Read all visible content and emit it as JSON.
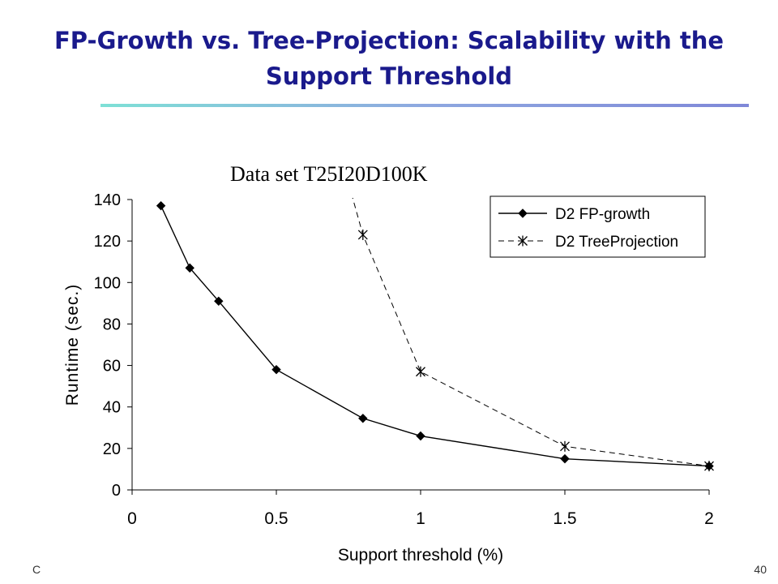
{
  "slide": {
    "title": "FP-Growth vs. Tree-Projection: Scalability with the Support Threshold",
    "footer_left": "C",
    "page_number": "40"
  },
  "colors": {
    "title": "#1a1a8c",
    "bar_start": "#7ee0d6",
    "bar_end": "#7f88d8"
  },
  "chart_data": {
    "type": "line",
    "title": "Data set T25I20D100K",
    "xlabel": "Support threshold (%)",
    "ylabel": "Runtime (sec.)",
    "xlim": [
      0,
      2
    ],
    "ylim": [
      0,
      140
    ],
    "xticks": [
      0,
      0.5,
      1,
      1.5,
      2
    ],
    "xtick_labels": [
      "0",
      "0.5",
      "1",
      "1.5",
      "2"
    ],
    "yticks": [
      0,
      20,
      40,
      60,
      80,
      100,
      120,
      140
    ],
    "ytick_labels": [
      "0",
      "20",
      "40",
      "60",
      "80",
      "100",
      "120",
      "140"
    ],
    "grid": false,
    "legend_position": "top-right",
    "series": [
      {
        "name": "D2 FP-growth",
        "marker": "diamond",
        "line": "solid",
        "x": [
          0.1,
          0.2,
          0.3,
          0.5,
          0.8,
          1.0,
          1.5,
          2.0
        ],
        "y": [
          137,
          107,
          91,
          58,
          34.5,
          26,
          15,
          11.5
        ]
      },
      {
        "name": "D2 TreeProjection",
        "marker": "asterisk",
        "line": "dashed",
        "x": [
          0.8,
          1.0,
          1.5,
          2.0
        ],
        "y": [
          123,
          57,
          21,
          11.5
        ],
        "clip_lead_in": [
          0.76,
          143
        ]
      }
    ]
  }
}
